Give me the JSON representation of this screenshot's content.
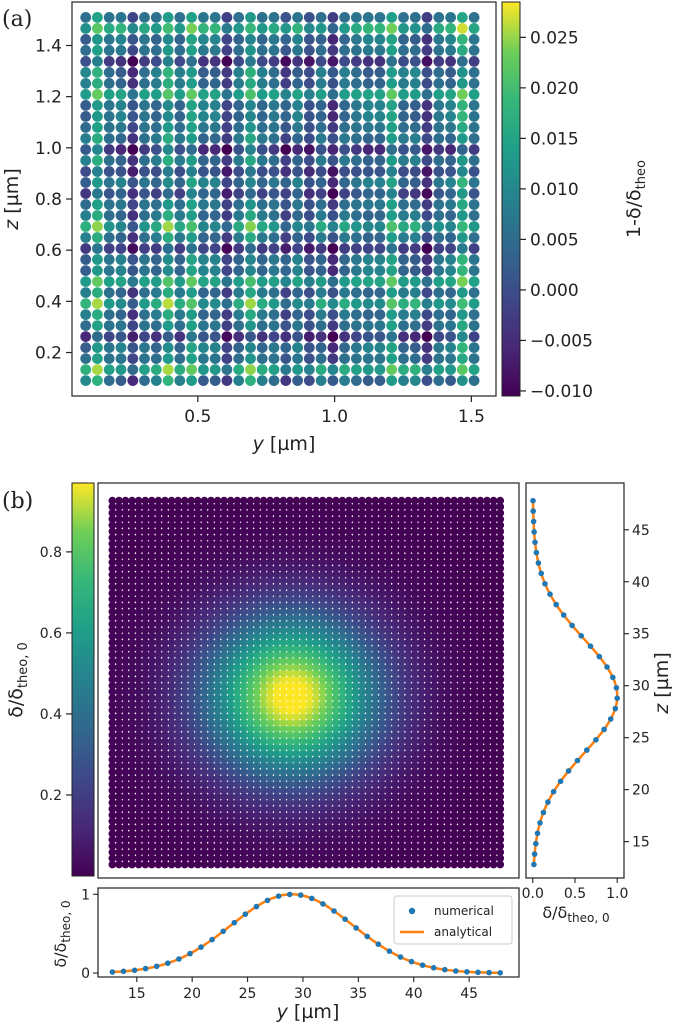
{
  "chart_data": [
    {
      "panel": "(a)",
      "type": "scatter",
      "xlabel_var": "y",
      "xlabel_unit": " [µm]",
      "ylabel_var": "z",
      "ylabel_unit": " [µm]",
      "xlim": [
        0.04,
        1.59
      ],
      "ylim": [
        0.03,
        1.57
      ],
      "xticks": [
        0.5,
        1.0,
        1.5
      ],
      "xtick_labels": [
        "0.5",
        "1.0",
        "1.5"
      ],
      "yticks": [
        0.2,
        0.4,
        0.6,
        0.8,
        1.0,
        1.2,
        1.4
      ],
      "ytick_labels": [
        "0.2",
        "0.4",
        "0.6",
        "0.8",
        "1.0",
        "1.2",
        "1.4"
      ],
      "grid_n": 34,
      "cmap": "viridis",
      "colorbar": {
        "label_main": "1-δ/δ",
        "label_sub": "theo",
        "range": [
          -0.0105,
          0.0285
        ],
        "ticks": [
          -0.01,
          -0.005,
          0.0,
          0.005,
          0.01,
          0.015,
          0.02,
          0.025
        ],
        "tick_labels": [
          "−0.010",
          "−0.005",
          "0.000",
          "0.005",
          "0.010",
          "0.015",
          "0.020",
          "0.025"
        ]
      }
    },
    {
      "panel": "(b)",
      "type": "scatter",
      "xlim": [
        11.5,
        49.5
      ],
      "ylim": [
        11.5,
        49.5
      ],
      "grid_n": 60,
      "center_y": 29,
      "center_z": 29,
      "sigma": 5.5,
      "cmap": "viridis",
      "colorbar": {
        "label_main": "δ/δ",
        "label_sub": "theo, 0",
        "range": [
          0.0,
          0.97
        ],
        "ticks": [
          0.2,
          0.4,
          0.6,
          0.8
        ],
        "tick_labels": [
          "0.2",
          "0.4",
          "0.6",
          "0.8"
        ]
      },
      "bottom_profile": {
        "xlabel_var": "y",
        "xlabel_unit": " [µm]",
        "ylabel_main": "δ/δ",
        "ylabel_sub": "theo, 0",
        "xticks": [
          15,
          20,
          25,
          30,
          35,
          40,
          45
        ],
        "xtick_labels": [
          "15",
          "20",
          "25",
          "30",
          "35",
          "40",
          "45"
        ],
        "yticks": [
          0,
          1
        ],
        "ytick_labels": [
          "0",
          "1"
        ],
        "ylim": [
          -0.05,
          1.08
        ]
      },
      "right_profile": {
        "ylabel_var": "z",
        "ylabel_unit": " [µm]",
        "xlabel_main": "δ/δ",
        "xlabel_sub": "theo, 0",
        "yticks": [
          15,
          20,
          25,
          30,
          35,
          40,
          45
        ],
        "ytick_labels": [
          "15",
          "20",
          "25",
          "30",
          "35",
          "40",
          "45"
        ],
        "xticks": [
          0.0,
          0.5,
          1.0
        ],
        "xtick_labels": [
          "0.0",
          "0.5",
          "1.0"
        ],
        "xlim": [
          -0.08,
          1.08
        ]
      },
      "profile_points": 36,
      "legend": {
        "numerical": "numerical",
        "analytical": "analytical",
        "numerical_color": "#1f77b4",
        "analytical_color": "#ff7f0e"
      }
    }
  ]
}
